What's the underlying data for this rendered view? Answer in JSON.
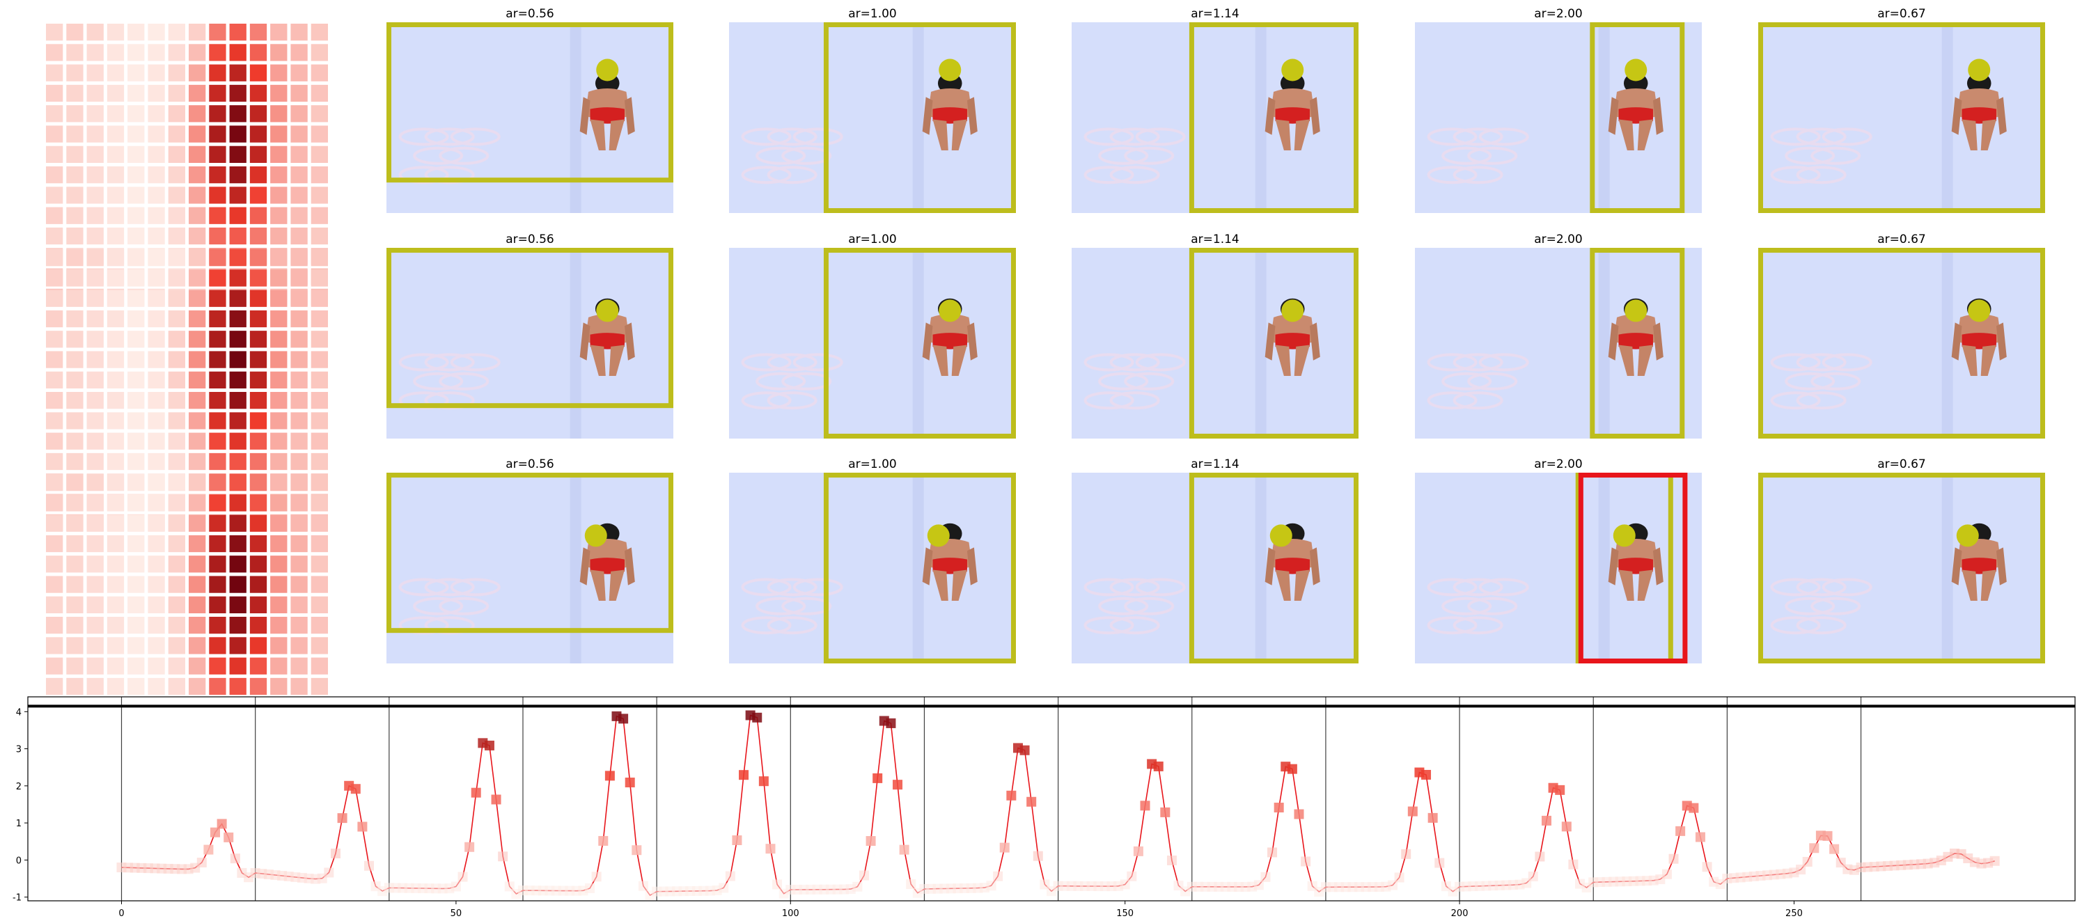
{
  "panel_rows": [
    {
      "grid_weights": [
        [
          0.1,
          0.12,
          0.1,
          0.06,
          0.04,
          0.03,
          0.05,
          0.12,
          0.4,
          0.5,
          0.38,
          0.2,
          0.18,
          0.15
        ],
        [
          0.12,
          0.1,
          0.08,
          0.05,
          0.03,
          0.04,
          0.08,
          0.18,
          0.55,
          0.62,
          0.48,
          0.25,
          0.2,
          0.14
        ],
        [
          0.1,
          0.1,
          0.08,
          0.05,
          0.03,
          0.05,
          0.1,
          0.25,
          0.65,
          0.75,
          0.6,
          0.28,
          0.2,
          0.16
        ],
        [
          0.12,
          0.1,
          0.08,
          0.06,
          0.03,
          0.05,
          0.1,
          0.3,
          0.72,
          0.85,
          0.68,
          0.3,
          0.22,
          0.16
        ],
        [
          0.1,
          0.1,
          0.07,
          0.05,
          0.03,
          0.05,
          0.12,
          0.32,
          0.78,
          0.92,
          0.74,
          0.32,
          0.22,
          0.15
        ],
        [
          0.12,
          0.1,
          0.08,
          0.05,
          0.03,
          0.05,
          0.12,
          0.33,
          0.8,
          0.95,
          0.76,
          0.32,
          0.22,
          0.16
        ],
        [
          0.1,
          0.1,
          0.08,
          0.05,
          0.03,
          0.05,
          0.12,
          0.32,
          0.78,
          0.92,
          0.74,
          0.3,
          0.2,
          0.15
        ],
        [
          0.12,
          0.1,
          0.08,
          0.06,
          0.03,
          0.05,
          0.1,
          0.3,
          0.72,
          0.85,
          0.66,
          0.28,
          0.2,
          0.16
        ],
        [
          0.1,
          0.1,
          0.07,
          0.05,
          0.03,
          0.04,
          0.1,
          0.26,
          0.64,
          0.74,
          0.58,
          0.26,
          0.2,
          0.15
        ],
        [
          0.12,
          0.1,
          0.08,
          0.05,
          0.03,
          0.04,
          0.08,
          0.22,
          0.55,
          0.62,
          0.48,
          0.24,
          0.18,
          0.16
        ],
        [
          0.1,
          0.1,
          0.08,
          0.05,
          0.03,
          0.04,
          0.08,
          0.18,
          0.45,
          0.5,
          0.4,
          0.22,
          0.18,
          0.14
        ],
        [
          0.12,
          0.1,
          0.08,
          0.06,
          0.03,
          0.04,
          0.06,
          0.15,
          0.35,
          0.4,
          0.32,
          0.2,
          0.18,
          0.16
        ],
        [
          0.14,
          0.12,
          0.1,
          0.08,
          0.05,
          0.05,
          0.06,
          0.12,
          0.25,
          0.28,
          0.24,
          0.18,
          0.18,
          0.17
        ],
        [
          0.16,
          0.14,
          0.12,
          0.1,
          0.08,
          0.08,
          0.08,
          0.12,
          0.18,
          0.2,
          0.18,
          0.17,
          0.18,
          0.18
        ]
      ],
      "crops": [
        {
          "label": "ar=0.56",
          "dot": [
            0.77,
            0.25
          ],
          "boxes": [
            {
              "color": "#bdbd1c",
              "rect": [
                0.0,
                0.0,
                1.0,
                0.84
              ]
            }
          ]
        },
        {
          "label": "ar=1.00",
          "dot": [
            0.77,
            0.25
          ],
          "boxes": [
            {
              "color": "#bdbd1c",
              "rect": [
                0.33,
                0.0,
                1.0,
                1.0
              ]
            }
          ]
        },
        {
          "label": "ar=1.14",
          "dot": [
            0.77,
            0.25
          ],
          "boxes": [
            {
              "color": "#bdbd1c",
              "rect": [
                0.41,
                0.0,
                1.0,
                1.0
              ]
            }
          ]
        },
        {
          "label": "ar=2.00",
          "dot": [
            0.77,
            0.25
          ],
          "boxes": [
            {
              "color": "#bdbd1c",
              "rect": [
                0.61,
                0.0,
                0.94,
                1.0
              ]
            }
          ]
        },
        {
          "label": "ar=0.67",
          "dot": [
            0.77,
            0.25
          ],
          "boxes": [
            {
              "color": "#bdbd1c",
              "rect": [
                0.0,
                0.0,
                1.0,
                1.0
              ]
            }
          ]
        }
      ]
    },
    {
      "grid_weights": [
        [
          0.1,
          0.12,
          0.1,
          0.06,
          0.04,
          0.03,
          0.05,
          0.14,
          0.42,
          0.55,
          0.4,
          0.2,
          0.18,
          0.15
        ],
        [
          0.12,
          0.1,
          0.08,
          0.05,
          0.03,
          0.04,
          0.08,
          0.2,
          0.58,
          0.68,
          0.52,
          0.25,
          0.2,
          0.14
        ],
        [
          0.1,
          0.1,
          0.08,
          0.05,
          0.03,
          0.05,
          0.1,
          0.26,
          0.7,
          0.8,
          0.64,
          0.28,
          0.2,
          0.16
        ],
        [
          0.12,
          0.1,
          0.08,
          0.06,
          0.03,
          0.05,
          0.1,
          0.3,
          0.75,
          0.9,
          0.7,
          0.3,
          0.22,
          0.16
        ],
        [
          0.1,
          0.1,
          0.07,
          0.05,
          0.03,
          0.05,
          0.12,
          0.32,
          0.8,
          0.95,
          0.76,
          0.32,
          0.22,
          0.15
        ],
        [
          0.12,
          0.1,
          0.08,
          0.05,
          0.03,
          0.05,
          0.12,
          0.33,
          0.82,
          0.97,
          0.78,
          0.32,
          0.22,
          0.16
        ],
        [
          0.1,
          0.1,
          0.08,
          0.05,
          0.03,
          0.05,
          0.12,
          0.32,
          0.8,
          0.94,
          0.75,
          0.3,
          0.2,
          0.15
        ],
        [
          0.12,
          0.1,
          0.08,
          0.06,
          0.03,
          0.05,
          0.1,
          0.3,
          0.74,
          0.87,
          0.68,
          0.28,
          0.2,
          0.16
        ],
        [
          0.1,
          0.1,
          0.07,
          0.05,
          0.03,
          0.04,
          0.1,
          0.26,
          0.66,
          0.76,
          0.6,
          0.26,
          0.2,
          0.15
        ],
        [
          0.12,
          0.1,
          0.08,
          0.05,
          0.03,
          0.04,
          0.08,
          0.22,
          0.56,
          0.64,
          0.5,
          0.24,
          0.18,
          0.16
        ],
        [
          0.1,
          0.1,
          0.08,
          0.05,
          0.03,
          0.04,
          0.08,
          0.18,
          0.46,
          0.52,
          0.42,
          0.22,
          0.18,
          0.14
        ],
        [
          0.12,
          0.1,
          0.08,
          0.06,
          0.03,
          0.04,
          0.06,
          0.15,
          0.36,
          0.42,
          0.33,
          0.2,
          0.18,
          0.16
        ],
        [
          0.14,
          0.12,
          0.1,
          0.08,
          0.05,
          0.05,
          0.06,
          0.12,
          0.26,
          0.3,
          0.25,
          0.18,
          0.18,
          0.17
        ],
        [
          0.16,
          0.14,
          0.12,
          0.1,
          0.08,
          0.08,
          0.08,
          0.12,
          0.18,
          0.2,
          0.18,
          0.17,
          0.18,
          0.18
        ]
      ],
      "crops": [
        {
          "label": "ar=0.56",
          "dot": [
            0.77,
            0.33
          ],
          "boxes": [
            {
              "color": "#bdbd1c",
              "rect": [
                0.0,
                0.0,
                1.0,
                0.84
              ]
            }
          ]
        },
        {
          "label": "ar=1.00",
          "dot": [
            0.77,
            0.33
          ],
          "boxes": [
            {
              "color": "#bdbd1c",
              "rect": [
                0.33,
                0.0,
                1.0,
                1.0
              ]
            }
          ]
        },
        {
          "label": "ar=1.14",
          "dot": [
            0.77,
            0.33
          ],
          "boxes": [
            {
              "color": "#bdbd1c",
              "rect": [
                0.41,
                0.0,
                1.0,
                1.0
              ]
            }
          ]
        },
        {
          "label": "ar=2.00",
          "dot": [
            0.77,
            0.33
          ],
          "boxes": [
            {
              "color": "#bdbd1c",
              "rect": [
                0.61,
                0.0,
                0.94,
                1.0
              ]
            }
          ]
        },
        {
          "label": "ar=0.67",
          "dot": [
            0.77,
            0.33
          ],
          "boxes": [
            {
              "color": "#bdbd1c",
              "rect": [
                0.0,
                0.0,
                1.0,
                1.0
              ]
            }
          ]
        }
      ]
    },
    {
      "grid_weights": [
        [
          0.1,
          0.12,
          0.1,
          0.06,
          0.04,
          0.03,
          0.05,
          0.14,
          0.42,
          0.52,
          0.4,
          0.2,
          0.18,
          0.15
        ],
        [
          0.12,
          0.1,
          0.08,
          0.05,
          0.03,
          0.04,
          0.08,
          0.2,
          0.58,
          0.66,
          0.52,
          0.25,
          0.2,
          0.14
        ],
        [
          0.1,
          0.1,
          0.08,
          0.05,
          0.03,
          0.05,
          0.1,
          0.26,
          0.7,
          0.8,
          0.64,
          0.28,
          0.2,
          0.16
        ],
        [
          0.12,
          0.1,
          0.08,
          0.06,
          0.03,
          0.05,
          0.1,
          0.3,
          0.76,
          0.9,
          0.72,
          0.3,
          0.22,
          0.16
        ],
        [
          0.1,
          0.1,
          0.07,
          0.05,
          0.03,
          0.05,
          0.12,
          0.32,
          0.8,
          0.96,
          0.78,
          0.32,
          0.22,
          0.15
        ],
        [
          0.12,
          0.1,
          0.08,
          0.05,
          0.03,
          0.05,
          0.12,
          0.33,
          0.82,
          0.97,
          0.8,
          0.32,
          0.22,
          0.16
        ],
        [
          0.1,
          0.1,
          0.08,
          0.05,
          0.03,
          0.05,
          0.12,
          0.32,
          0.8,
          0.94,
          0.76,
          0.3,
          0.2,
          0.15
        ],
        [
          0.12,
          0.1,
          0.08,
          0.06,
          0.03,
          0.05,
          0.1,
          0.3,
          0.74,
          0.88,
          0.7,
          0.28,
          0.2,
          0.16
        ],
        [
          0.1,
          0.1,
          0.07,
          0.05,
          0.03,
          0.04,
          0.1,
          0.26,
          0.66,
          0.78,
          0.62,
          0.26,
          0.2,
          0.15
        ],
        [
          0.12,
          0.1,
          0.08,
          0.05,
          0.03,
          0.04,
          0.08,
          0.22,
          0.56,
          0.64,
          0.52,
          0.24,
          0.18,
          0.16
        ],
        [
          0.1,
          0.1,
          0.08,
          0.05,
          0.03,
          0.04,
          0.08,
          0.18,
          0.46,
          0.52,
          0.42,
          0.22,
          0.18,
          0.14
        ],
        [
          0.12,
          0.1,
          0.08,
          0.06,
          0.03,
          0.04,
          0.06,
          0.15,
          0.36,
          0.42,
          0.34,
          0.2,
          0.18,
          0.16
        ],
        [
          0.14,
          0.12,
          0.1,
          0.08,
          0.05,
          0.05,
          0.06,
          0.12,
          0.26,
          0.3,
          0.25,
          0.18,
          0.18,
          0.17
        ],
        [
          0.16,
          0.14,
          0.12,
          0.1,
          0.08,
          0.08,
          0.08,
          0.12,
          0.18,
          0.2,
          0.18,
          0.17,
          0.18,
          0.18
        ]
      ],
      "crops": [
        {
          "label": "ar=0.56",
          "dot": [
            0.73,
            0.33
          ],
          "boxes": [
            {
              "color": "#bdbd1c",
              "rect": [
                0.0,
                0.0,
                1.0,
                0.84
              ]
            }
          ]
        },
        {
          "label": "ar=1.00",
          "dot": [
            0.73,
            0.33
          ],
          "boxes": [
            {
              "color": "#bdbd1c",
              "rect": [
                0.33,
                0.0,
                1.0,
                1.0
              ]
            }
          ]
        },
        {
          "label": "ar=1.14",
          "dot": [
            0.73,
            0.33
          ],
          "boxes": [
            {
              "color": "#bdbd1c",
              "rect": [
                0.41,
                0.0,
                1.0,
                1.0
              ]
            }
          ]
        },
        {
          "label": "ar=2.00",
          "dot": [
            0.73,
            0.33
          ],
          "boxes": [
            {
              "color": "#bdbd1c",
              "rect": [
                0.56,
                0.0,
                0.9,
                1.0
              ]
            },
            {
              "color": "#e8151b",
              "rect": [
                0.57,
                0.0,
                0.95,
                1.0
              ]
            }
          ]
        },
        {
          "label": "ar=0.67",
          "dot": [
            0.73,
            0.33
          ],
          "boxes": [
            {
              "color": "#bdbd1c",
              "rect": [
                0.0,
                0.0,
                1.0,
                1.0
              ]
            }
          ]
        }
      ]
    }
  ],
  "colors": {
    "crop_background": "#d5defb",
    "heat_low": "#fff5f0",
    "heat_mid": "#ef3b2c",
    "heat_high": "#67000d",
    "line": "#e8151b",
    "threshold": "#000000",
    "divider": "#000000"
  },
  "chart_data": {
    "type": "line",
    "xlim": [
      -14,
      292
    ],
    "ylim": [
      -1.1,
      4.4
    ],
    "xticks": [
      0,
      50,
      100,
      150,
      200,
      250
    ],
    "yticks": [
      -1,
      0,
      1,
      2,
      3,
      4
    ],
    "threshold": 4.15,
    "dividers": [
      0,
      20,
      40,
      60,
      80,
      100,
      120,
      140,
      160,
      180,
      200,
      220,
      240,
      260
    ],
    "peaks": [
      {
        "center": 15,
        "height": 1.05,
        "base": -0.2,
        "end": -0.3
      },
      {
        "center": 34.5,
        "height": 2.4,
        "base": -0.35,
        "end": -0.72
      },
      {
        "center": 54.5,
        "height": 3.4,
        "base": -0.75,
        "end": -0.8
      },
      {
        "center": 74.5,
        "height": 4.15,
        "base": -0.82,
        "end": -0.85
      },
      {
        "center": 94.5,
        "height": 4.12,
        "base": -0.85,
        "end": -0.8
      },
      {
        "center": 114.5,
        "height": 3.98,
        "base": -0.8,
        "end": -0.78
      },
      {
        "center": 134.5,
        "height": 3.18,
        "base": -0.78,
        "end": -0.72
      },
      {
        "center": 154.5,
        "height": 2.78,
        "base": -0.7,
        "end": -0.72
      },
      {
        "center": 174.5,
        "height": 2.7,
        "base": -0.72,
        "end": -0.73
      },
      {
        "center": 194.5,
        "height": 2.52,
        "base": -0.73,
        "end": -0.72
      },
      {
        "center": 214.5,
        "height": 2.0,
        "base": -0.72,
        "end": -0.6
      },
      {
        "center": 234.5,
        "height": 1.5,
        "base": -0.6,
        "end": -0.5
      },
      {
        "center": 254.5,
        "height": 0.5,
        "base": -0.5,
        "end": -0.2
      }
    ],
    "tail": {
      "center": 274.5,
      "height": 0.05,
      "base": -0.2,
      "end": 0.0
    },
    "x_end": 280
  }
}
